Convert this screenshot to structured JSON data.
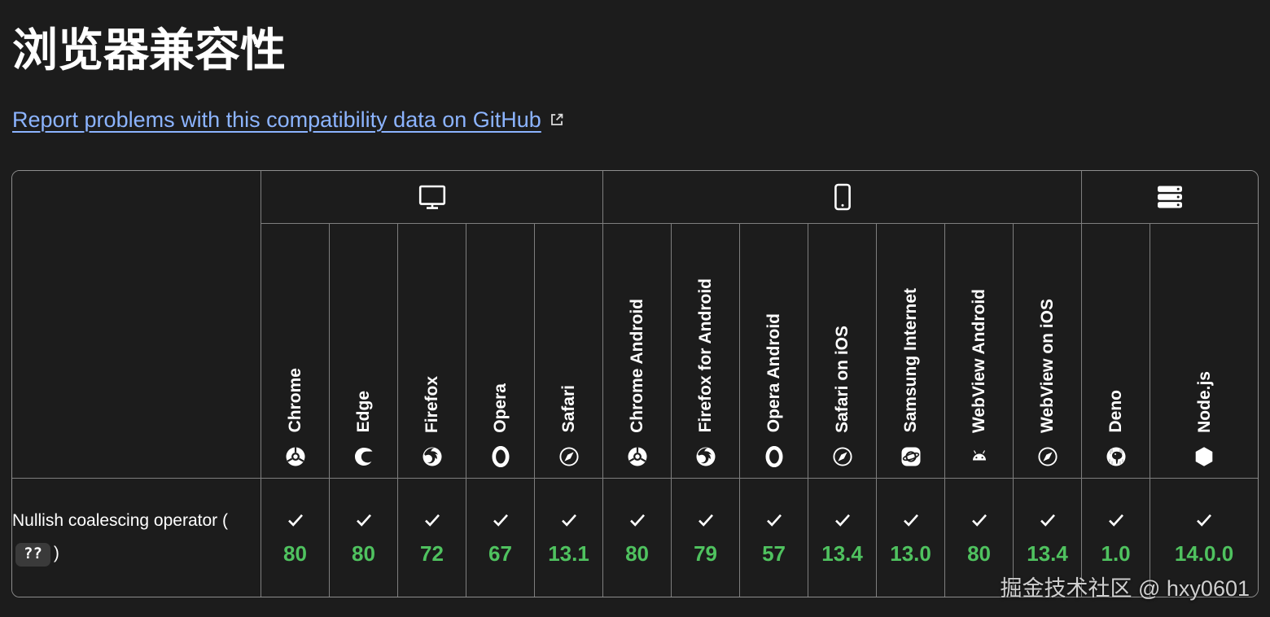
{
  "page": {
    "title": "浏览器兼容性",
    "report_link": {
      "label": "Report problems with this compatibility data on GitHub",
      "icon": "external-link-icon"
    },
    "watermark": "掘金技术社区 @ hxy0601"
  },
  "colors": {
    "background": "#1c1c1c",
    "table_border": "#7e7e7e",
    "link": "#8cb4ff",
    "supported_green": "#4fc25f",
    "code_pill_bg": "#3a3a3a",
    "text": "#ffffff"
  },
  "compat_table": {
    "platform_groups": [
      {
        "name": "desktop",
        "icon": "desktop-icon",
        "span": 5
      },
      {
        "name": "mobile",
        "icon": "mobile-icon",
        "span": 7
      },
      {
        "name": "server",
        "icon": "server-icon",
        "span": 2
      }
    ],
    "browsers": [
      {
        "label": "Chrome",
        "icon": "chrome-icon"
      },
      {
        "label": "Edge",
        "icon": "edge-icon"
      },
      {
        "label": "Firefox",
        "icon": "firefox-icon"
      },
      {
        "label": "Opera",
        "icon": "opera-icon"
      },
      {
        "label": "Safari",
        "icon": "safari-icon"
      },
      {
        "label": "Chrome Android",
        "icon": "chrome-icon"
      },
      {
        "label": "Firefox for Android",
        "icon": "firefox-icon"
      },
      {
        "label": "Opera Android",
        "icon": "opera-icon"
      },
      {
        "label": "Safari on iOS",
        "icon": "safari-icon"
      },
      {
        "label": "Samsung Internet",
        "icon": "samsung-internet-icon"
      },
      {
        "label": "WebView Android",
        "icon": "android-icon"
      },
      {
        "label": "WebView on iOS",
        "icon": "safari-icon"
      },
      {
        "label": "Deno",
        "icon": "deno-icon"
      },
      {
        "label": "Node.js",
        "icon": "nodejs-icon"
      }
    ],
    "rows": [
      {
        "feature": {
          "prefix": "Nullish coalescing operator (",
          "code": "??",
          "suffix": ")"
        },
        "support": [
          {
            "status": "supported",
            "icon": "check-icon",
            "version": "80"
          },
          {
            "status": "supported",
            "icon": "check-icon",
            "version": "80"
          },
          {
            "status": "supported",
            "icon": "check-icon",
            "version": "72"
          },
          {
            "status": "supported",
            "icon": "check-icon",
            "version": "67"
          },
          {
            "status": "supported",
            "icon": "check-icon",
            "version": "13.1"
          },
          {
            "status": "supported",
            "icon": "check-icon",
            "version": "80"
          },
          {
            "status": "supported",
            "icon": "check-icon",
            "version": "79"
          },
          {
            "status": "supported",
            "icon": "check-icon",
            "version": "57"
          },
          {
            "status": "supported",
            "icon": "check-icon",
            "version": "13.4"
          },
          {
            "status": "supported",
            "icon": "check-icon",
            "version": "13.0"
          },
          {
            "status": "supported",
            "icon": "check-icon",
            "version": "80"
          },
          {
            "status": "supported",
            "icon": "check-icon",
            "version": "13.4"
          },
          {
            "status": "supported",
            "icon": "check-icon",
            "version": "1.0"
          },
          {
            "status": "supported",
            "icon": "check-icon",
            "version": "14.0.0"
          }
        ]
      }
    ]
  }
}
